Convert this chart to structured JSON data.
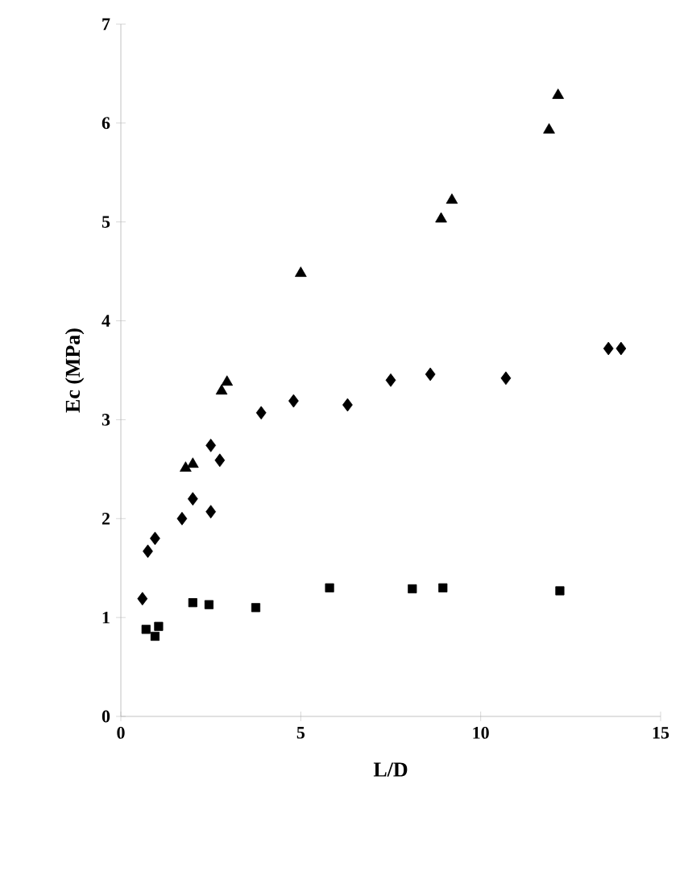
{
  "chart_data": {
    "type": "scatter",
    "xlabel": "L/D",
    "ylabel": "Ec (MPa)",
    "xlim": [
      0,
      15
    ],
    "xticks": [
      0,
      5,
      10,
      15
    ],
    "ylim": [
      0,
      7
    ],
    "yticks": [
      0,
      1,
      2,
      3,
      4,
      5,
      6,
      7
    ],
    "series": [
      {
        "color": "#000000",
        "marker": "triangle",
        "x": [
          1.8,
          2.0,
          2.8,
          2.95,
          5.0,
          8.9,
          9.2,
          11.9,
          12.15
        ],
        "values": [
          2.51,
          2.55,
          3.29,
          3.38,
          4.48,
          5.03,
          5.22,
          5.93,
          6.28
        ]
      },
      {
        "color": "#000000",
        "marker": "diamond",
        "x": [
          0.6,
          0.75,
          0.95,
          1.7,
          2.0,
          2.5,
          2.5,
          2.75,
          3.9,
          4.8,
          6.3,
          7.5,
          8.6,
          10.7,
          13.55,
          13.9
        ],
        "values": [
          1.19,
          1.67,
          1.8,
          2.0,
          2.2,
          2.74,
          2.07,
          2.59,
          3.07,
          3.19,
          3.15,
          3.4,
          3.46,
          3.42,
          3.72,
          3.72
        ]
      },
      {
        "color": "#000000",
        "marker": "square",
        "x": [
          0.7,
          0.95,
          1.05,
          2.0,
          2.45,
          3.75,
          5.8,
          8.1,
          8.95,
          12.2
        ],
        "values": [
          0.88,
          0.81,
          0.91,
          1.15,
          1.13,
          1.1,
          1.3,
          1.29,
          1.3,
          1.27
        ]
      }
    ]
  }
}
